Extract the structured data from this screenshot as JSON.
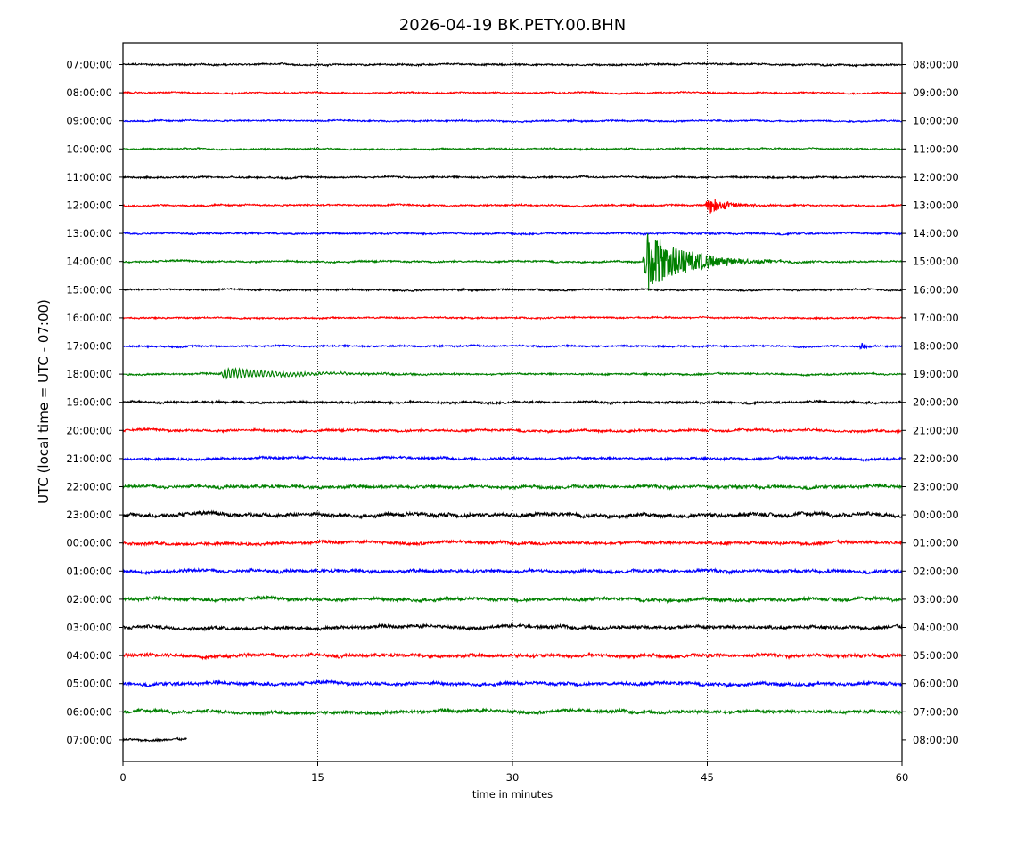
{
  "chart_data": {
    "type": "line",
    "title": "2026-04-19 BK.PETY.00.BHN",
    "xlabel": "time in minutes",
    "ylabel": "UTC (local time = UTC - 07:00)",
    "xlim": [
      0,
      60
    ],
    "x_ticks": [
      0,
      15,
      30,
      45,
      60
    ],
    "grid": "vertical dotted lines at 15, 30, 45",
    "colors": [
      "#000000",
      "#ff0000",
      "#0000ff",
      "#008000"
    ],
    "rows": [
      {
        "left": "07:00:00",
        "right": "08:00:00",
        "color": "#000000",
        "amplitude": 1.0,
        "end_minute": 60
      },
      {
        "left": "08:00:00",
        "right": "09:00:00",
        "color": "#ff0000",
        "amplitude": 0.9,
        "end_minute": 60
      },
      {
        "left": "09:00:00",
        "right": "10:00:00",
        "color": "#0000ff",
        "amplitude": 0.9,
        "end_minute": 60
      },
      {
        "left": "10:00:00",
        "right": "11:00:00",
        "color": "#008000",
        "amplitude": 0.9,
        "end_minute": 60
      },
      {
        "left": "11:00:00",
        "right": "12:00:00",
        "color": "#000000",
        "amplitude": 1.0,
        "end_minute": 60
      },
      {
        "left": "12:00:00",
        "right": "13:00:00",
        "color": "#ff0000",
        "amplitude": 1.0,
        "end_minute": 60,
        "events": [
          {
            "start_minute": 44.8,
            "peak": 9,
            "decay_minutes": 1.6
          }
        ]
      },
      {
        "left": "13:00:00",
        "right": "14:00:00",
        "color": "#0000ff",
        "amplitude": 1.0,
        "end_minute": 60
      },
      {
        "left": "14:00:00",
        "right": "15:00:00",
        "color": "#008000",
        "amplitude": 1.0,
        "end_minute": 60,
        "events": [
          {
            "start_minute": 40.0,
            "peak": 36,
            "decay_minutes": 3.0
          }
        ]
      },
      {
        "left": "15:00:00",
        "right": "16:00:00",
        "color": "#000000",
        "amplitude": 1.0,
        "end_minute": 60
      },
      {
        "left": "16:00:00",
        "right": "17:00:00",
        "color": "#ff0000",
        "amplitude": 0.9,
        "end_minute": 60
      },
      {
        "left": "17:00:00",
        "right": "18:00:00",
        "color": "#0000ff",
        "amplitude": 1.0,
        "end_minute": 60,
        "events": [
          {
            "start_minute": 56.6,
            "peak": 4,
            "decay_minutes": 0.4
          }
        ]
      },
      {
        "left": "18:00:00",
        "right": "19:00:00",
        "color": "#008000",
        "amplitude": 1.0,
        "end_minute": 60,
        "events": [
          {
            "start_minute": 7.5,
            "peak": 6,
            "decay_minutes": 4.5,
            "period_minutes": 0.28
          }
        ]
      },
      {
        "left": "19:00:00",
        "right": "20:00:00",
        "color": "#000000",
        "amplitude": 1.3,
        "end_minute": 60
      },
      {
        "left": "20:00:00",
        "right": "21:00:00",
        "color": "#ff0000",
        "amplitude": 1.3,
        "end_minute": 60
      },
      {
        "left": "21:00:00",
        "right": "22:00:00",
        "color": "#0000ff",
        "amplitude": 1.4,
        "end_minute": 60
      },
      {
        "left": "22:00:00",
        "right": "23:00:00",
        "color": "#008000",
        "amplitude": 1.7,
        "end_minute": 60
      },
      {
        "left": "23:00:00",
        "right": "00:00:00",
        "color": "#000000",
        "amplitude": 2.2,
        "end_minute": 60
      },
      {
        "left": "00:00:00",
        "right": "01:00:00",
        "color": "#ff0000",
        "amplitude": 1.7,
        "end_minute": 60
      },
      {
        "left": "01:00:00",
        "right": "02:00:00",
        "color": "#0000ff",
        "amplitude": 1.8,
        "end_minute": 60
      },
      {
        "left": "02:00:00",
        "right": "03:00:00",
        "color": "#008000",
        "amplitude": 1.8,
        "end_minute": 60
      },
      {
        "left": "03:00:00",
        "right": "04:00:00",
        "color": "#000000",
        "amplitude": 1.9,
        "end_minute": 60
      },
      {
        "left": "04:00:00",
        "right": "05:00:00",
        "color": "#ff0000",
        "amplitude": 1.9,
        "end_minute": 60
      },
      {
        "left": "05:00:00",
        "right": "06:00:00",
        "color": "#0000ff",
        "amplitude": 1.8,
        "end_minute": 60
      },
      {
        "left": "06:00:00",
        "right": "07:00:00",
        "color": "#008000",
        "amplitude": 1.9,
        "end_minute": 60
      },
      {
        "left": "07:00:00",
        "right": "08:00:00",
        "color": "#000000",
        "amplitude": 1.2,
        "end_minute": 4.9
      }
    ]
  }
}
